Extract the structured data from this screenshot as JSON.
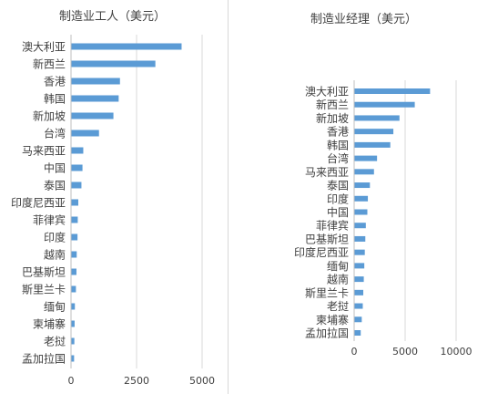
{
  "chart_data": [
    {
      "type": "bar",
      "orientation": "horizontal",
      "title": "制造业工人（美元）",
      "categories": [
        "澳大利亚",
        "新西兰",
        "香港",
        "韩国",
        "新加坡",
        "台湾",
        "马来西亚",
        "中国",
        "泰国",
        "印度尼西亚",
        "菲律宾",
        "印度",
        "越南",
        "巴基斯坦",
        "斯里兰卡",
        "缅甸",
        "柬埔寨",
        "老挝",
        "孟加拉国"
      ],
      "values": [
        4200,
        3200,
        1850,
        1800,
        1600,
        1050,
        450,
        420,
        380,
        260,
        240,
        230,
        200,
        190,
        170,
        130,
        120,
        110,
        100
      ],
      "xlim": [
        0,
        5000
      ],
      "xticks": [
        0,
        2500,
        5000
      ],
      "grid": true,
      "color": "#5b9bd5"
    },
    {
      "type": "bar",
      "orientation": "horizontal",
      "title": "制造业经理（美元）",
      "categories": [
        "澳大利亚",
        "新西兰",
        "新加坡",
        "香港",
        "韩国",
        "台湾",
        "马来西亚",
        "泰国",
        "印度",
        "中国",
        "菲律宾",
        "巴基斯坦",
        "印度尼西亚",
        "缅甸",
        "越南",
        "斯里兰卡",
        "老挝",
        "柬埔寨",
        "孟加拉国"
      ],
      "values": [
        7400,
        5900,
        4400,
        3800,
        3500,
        2200,
        1900,
        1500,
        1300,
        1250,
        1100,
        1050,
        1000,
        950,
        900,
        850,
        800,
        700,
        600
      ],
      "xlim": [
        0,
        10000
      ],
      "xticks": [
        0,
        5000,
        10000
      ],
      "grid": true,
      "color": "#5b9bd5"
    }
  ]
}
